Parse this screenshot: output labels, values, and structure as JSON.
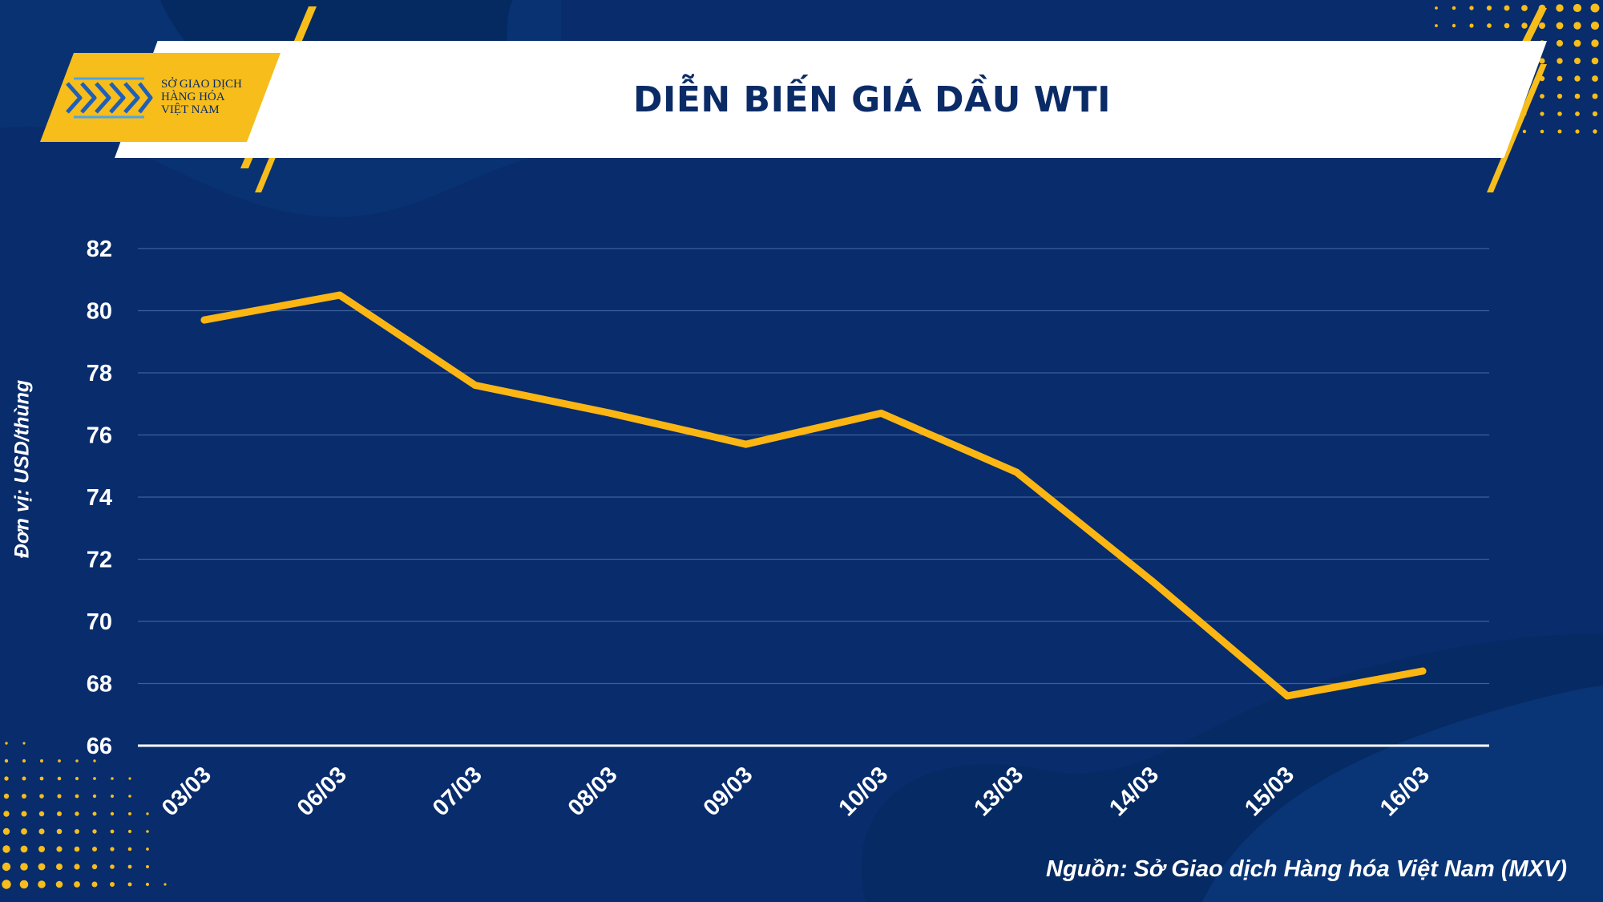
{
  "header": {
    "title": "DIỄN BIẾN GIÁ DẦU WTI",
    "logo_lines": [
      "SỞ GIAO DỊCH",
      "HÀNG HÓA",
      "VIỆT NAM"
    ]
  },
  "colors": {
    "background": "#082c6c",
    "accent": "#f6bd1b",
    "line": "#fbb613",
    "text": "#ffffff",
    "title_text": "#0b2b66"
  },
  "y_unit_label": "Đơn vị: USD/thùng",
  "source_note": "Nguồn: Sở Giao dịch Hàng hóa Việt Nam (MXV)",
  "chart_data": {
    "type": "line",
    "title": "DIỄN BIẾN GIÁ DẦU WTI",
    "categories": [
      "03/03",
      "06/03",
      "07/03",
      "08/03",
      "09/03",
      "10/03",
      "13/03",
      "14/03",
      "15/03",
      "16/03"
    ],
    "series": [
      {
        "values": [
          79.7,
          80.5,
          77.6,
          76.7,
          75.7,
          76.7,
          74.8,
          71.3,
          67.6,
          68.4
        ]
      }
    ],
    "ylabel": "Đơn vị: USD/thùng",
    "ylim": [
      66,
      82
    ],
    "yticks": [
      82,
      80,
      78,
      76,
      74,
      72,
      70,
      68,
      66
    ],
    "grid": true,
    "legend": "none"
  }
}
